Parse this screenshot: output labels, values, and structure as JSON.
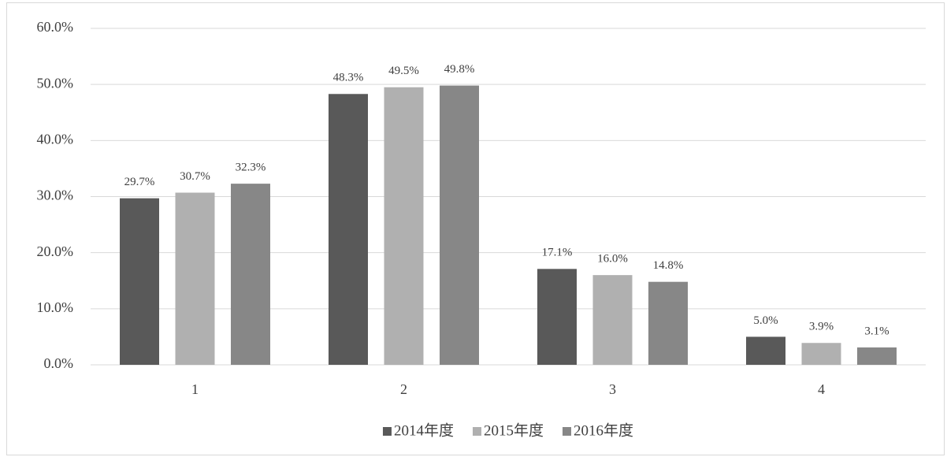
{
  "chart_data": {
    "type": "bar",
    "categories": [
      "1",
      "2",
      "3",
      "4"
    ],
    "series": [
      {
        "name": "2014年度",
        "color": "#595959",
        "values": [
          29.7,
          48.3,
          17.1,
          5.0
        ],
        "value_labels": [
          "29.7%",
          "48.3%",
          "17.1%",
          "5.0%"
        ]
      },
      {
        "name": "2015年度",
        "color": "#b0b0b0",
        "values": [
          30.7,
          49.5,
          16.0,
          3.9
        ],
        "value_labels": [
          "30.7%",
          "49.5%",
          "16.0%",
          "3.9%"
        ]
      },
      {
        "name": "2016年度",
        "color": "#878787",
        "values": [
          32.3,
          49.8,
          14.8,
          3.1
        ],
        "value_labels": [
          "32.3%",
          "49.8%",
          "14.8%",
          "3.1%"
        ]
      }
    ],
    "ylim": [
      0,
      60
    ],
    "yticks": [
      {
        "value": 0,
        "label": "0.0%"
      },
      {
        "value": 10,
        "label": "10.0%"
      },
      {
        "value": 20,
        "label": "20.0%"
      },
      {
        "value": 30,
        "label": "30.0%"
      },
      {
        "value": 40,
        "label": "40.0%"
      },
      {
        "value": 50,
        "label": "50.0%"
      },
      {
        "value": 60,
        "label": "60.0%"
      }
    ],
    "grid": true,
    "legend": "bottom"
  }
}
